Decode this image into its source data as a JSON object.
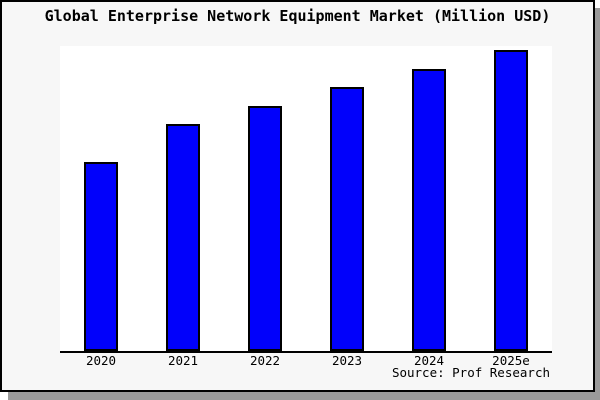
{
  "header": {
    "title": "Global Enterprise Network Equipment Market (Million USD)"
  },
  "footer": {
    "source": "Source: Prof Research"
  },
  "colors": {
    "panel_background": "#f7f7f7",
    "plot_background": "#ffffff",
    "bar_fill": "#0101fb",
    "bar_border": "#000000",
    "frame_border": "#000000",
    "drop_shadow": "#9a9a9a",
    "text": "#000000"
  },
  "chart_data": {
    "type": "bar",
    "title": "Global Enterprise Network Equipment Market (Million USD)",
    "categories": [
      "2020",
      "2021",
      "2022",
      "2023",
      "2024",
      "2025e"
    ],
    "values": [
      62.8,
      75.3,
      81.4,
      87.7,
      93.7,
      100
    ],
    "values_note": "relative index estimated from bar heights; no y-axis tick labels or data labels are shown, 2025e bar = 100",
    "xlabel": "",
    "ylabel": "",
    "ylim": [
      0,
      101.3
    ],
    "grid": false,
    "legend": false,
    "x_axis_line": true,
    "y_axis_line": false,
    "annotations": [
      "Source: Prof Research"
    ]
  }
}
